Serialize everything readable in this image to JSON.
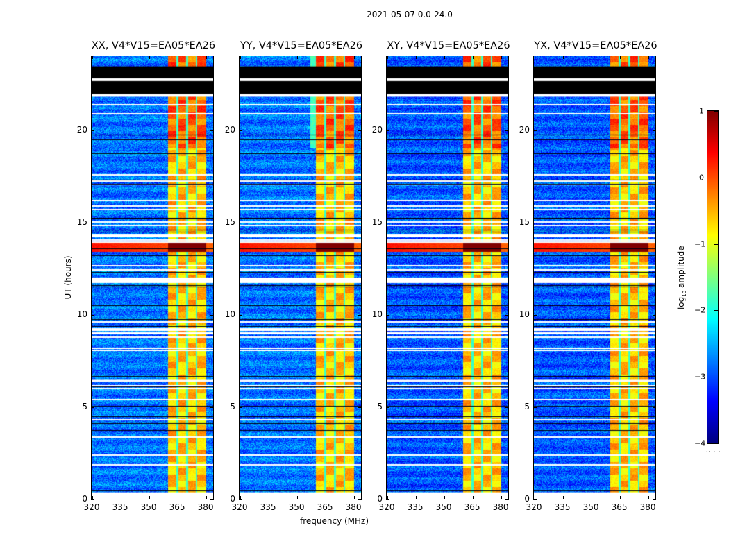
{
  "suptitle": "2021-05-07 0.0-24.0",
  "xlabel": "frequency (MHz)",
  "ylabel": "UT (hours)",
  "colorbar": {
    "label_prefix": "log",
    "label_sub": "10",
    "label_suffix": " amplitude",
    "range": [
      -4,
      1
    ],
    "ticks": [
      "1",
      "0",
      "−1",
      "−2",
      "−3",
      "−4"
    ],
    "tick_values": [
      1,
      0,
      -1,
      -2,
      -3,
      -4
    ],
    "colormap": "jet"
  },
  "chart_data": {
    "type": "heatmap",
    "title": "2021-05-07 0.0-24.0",
    "xlabel": "frequency (MHz)",
    "ylabel": "UT (hours)",
    "xlim": [
      320,
      384
    ],
    "ylim": [
      0,
      24
    ],
    "xticks": [
      320,
      335,
      350,
      365,
      380
    ],
    "xtick_labels": [
      "320",
      "335",
      "350",
      "365",
      "380"
    ],
    "yticks": [
      0,
      5,
      10,
      15,
      20
    ],
    "ytick_labels": [
      "0",
      "5",
      "10",
      "15",
      "20"
    ],
    "color_scale": "log10 amplitude",
    "color_range": [
      -4,
      1
    ],
    "background_level": -2.8,
    "rfi_band_mhz": [
      360,
      380
    ],
    "rfi_band_level": -0.6,
    "rfi_subband_gaps_mhz": [
      365,
      370,
      375
    ],
    "strong_rfi_event": {
      "ut_hours": [
        13.4,
        13.9
      ],
      "level_outside_band": 0.3,
      "level_in_band": 1.0
    },
    "flagged_black_ut_hours": [
      [
        22.25,
        23.45
      ],
      [
        21.9,
        22.5
      ],
      [
        22.9,
        23.4
      ]
    ],
    "blank_white_ut_hours": [
      [
        22.65,
        22.8
      ],
      [
        21.8,
        21.95
      ],
      [
        11.7,
        12.0
      ],
      [
        6.35,
        6.45
      ],
      [
        9.1,
        9.25
      ],
      [
        0.0,
        0.35
      ]
    ],
    "panels": [
      {
        "title": "XX, V4*V15=EA05*EA26",
        "pol": "XX"
      },
      {
        "title": "YY, V4*V15=EA05*EA26",
        "pol": "YY"
      },
      {
        "title": "XY, V4*V15=EA05*EA26",
        "pol": "XY"
      },
      {
        "title": "YX, V4*V15=EA05*EA26",
        "pol": "YX"
      }
    ]
  }
}
